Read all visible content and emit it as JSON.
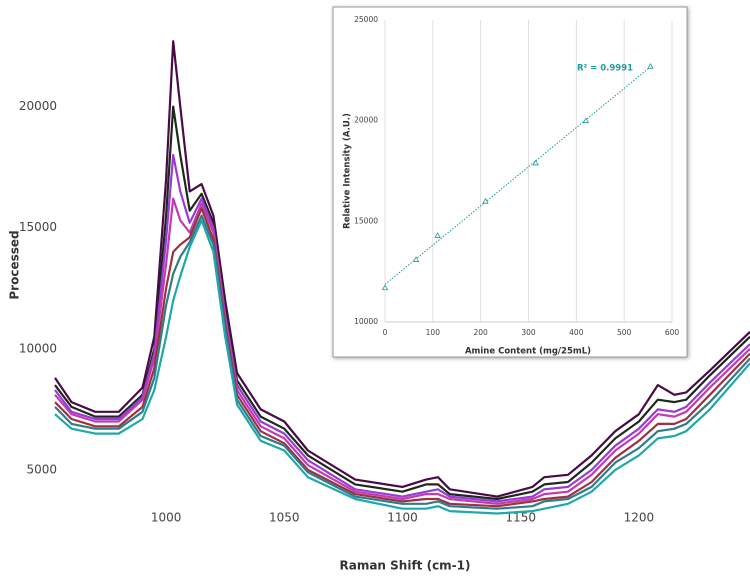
{
  "chart_data": [
    {
      "type": "line",
      "x_label": "Raman Shift (cm-1)",
      "y_label": "Processed",
      "x": [
        953,
        960,
        970,
        980,
        990,
        995,
        1000,
        1003,
        1006,
        1010,
        1015,
        1020,
        1025,
        1030,
        1040,
        1050,
        1060,
        1080,
        1100,
        1110,
        1115,
        1120,
        1140,
        1155,
        1160,
        1170,
        1180,
        1190,
        1200,
        1208,
        1215,
        1220,
        1230,
        1247
      ],
      "series": [
        {
          "color": "#4a0a45",
          "values": [
            8800,
            7800,
            7400,
            7400,
            8400,
            10500,
            17000,
            22700,
            20000,
            16500,
            16800,
            15500,
            12000,
            9000,
            7500,
            7000,
            5800,
            4600,
            4300,
            4600,
            4700,
            4200,
            3900,
            4300,
            4700,
            4800,
            5600,
            6600,
            7300,
            8500,
            8100,
            8200,
            9100,
            10700
          ]
        },
        {
          "color": "#1c2a1c",
          "values": [
            8500,
            7600,
            7200,
            7200,
            8100,
            10000,
            15500,
            20000,
            18000,
            15700,
            16400,
            15200,
            11600,
            8700,
            7200,
            6700,
            5600,
            4400,
            4100,
            4400,
            4400,
            4000,
            3800,
            4100,
            4400,
            4500,
            5300,
            6300,
            7000,
            7900,
            7800,
            7900,
            8900,
            10500
          ]
        },
        {
          "color": "#9a3ad8",
          "values": [
            8300,
            7400,
            7100,
            7100,
            8000,
            9800,
            14500,
            18000,
            16500,
            15200,
            16200,
            15000,
            11400,
            8500,
            7000,
            6500,
            5400,
            4200,
            3900,
            4100,
            4200,
            3900,
            3700,
            3900,
            4200,
            4300,
            5000,
            6000,
            6700,
            7500,
            7400,
            7600,
            8600,
            10200
          ]
        },
        {
          "color": "#c03cb0",
          "values": [
            8100,
            7300,
            7000,
            7000,
            7900,
            9600,
            13500,
            16200,
            15300,
            14800,
            16000,
            14800,
            11200,
            8300,
            6800,
            6300,
            5200,
            4100,
            3800,
            4000,
            4000,
            3800,
            3600,
            3800,
            4000,
            4100,
            4800,
            5800,
            6500,
            7300,
            7200,
            7400,
            8400,
            10000
          ]
        },
        {
          "color": "#a03040",
          "values": [
            7800,
            7100,
            6800,
            6800,
            7600,
            9200,
            12500,
            14000,
            14300,
            14600,
            15800,
            14500,
            11000,
            8100,
            6600,
            6100,
            5000,
            4000,
            3700,
            3800,
            3800,
            3600,
            3500,
            3700,
            3800,
            3900,
            4500,
            5500,
            6200,
            6900,
            6900,
            7100,
            8100,
            9800
          ]
        },
        {
          "color": "#2e7c8c",
          "values": [
            7600,
            6900,
            6700,
            6700,
            7400,
            8800,
            11800,
            13100,
            13800,
            14400,
            15500,
            14300,
            10800,
            7900,
            6400,
            6000,
            4900,
            3900,
            3600,
            3600,
            3700,
            3500,
            3400,
            3500,
            3700,
            3800,
            4300,
            5300,
            5900,
            6600,
            6700,
            6900,
            7800,
            9600
          ]
        },
        {
          "color": "#20a8a8",
          "values": [
            7300,
            6700,
            6500,
            6500,
            7100,
            8300,
            10500,
            12000,
            13000,
            14200,
            15300,
            14000,
            10500,
            7700,
            6200,
            5800,
            4700,
            3800,
            3400,
            3400,
            3500,
            3300,
            3200,
            3300,
            3400,
            3600,
            4100,
            5000,
            5600,
            6300,
            6400,
            6600,
            7500,
            9400
          ]
        }
      ],
      "xlim": [
        953,
        1247
      ],
      "ylim": [
        1900,
        24400
      ],
      "xticks": [
        1000,
        1050,
        1100,
        1150,
        1200
      ],
      "yticks": [
        5000,
        10000,
        15000,
        20000
      ],
      "grid": false
    },
    {
      "type": "scatter",
      "x_label": "Amine Content (mg/25mL)",
      "y_label": "Relative Intensity (A.U.)",
      "annotation": "R² = 0.9991",
      "x": [
        0,
        65,
        110,
        210,
        315,
        420,
        555
      ],
      "series": [
        {
          "color": "#1f9a9a",
          "values": [
            11700,
            13100,
            14300,
            16000,
            17900,
            20000,
            22700
          ]
        }
      ],
      "trendline": true,
      "xlim": [
        0,
        600
      ],
      "ylim": [
        10000,
        25000
      ],
      "xticks": [
        0,
        100,
        200,
        300,
        400,
        500,
        600
      ],
      "yticks": [
        10000,
        15000,
        20000,
        25000
      ],
      "grid": true
    }
  ]
}
